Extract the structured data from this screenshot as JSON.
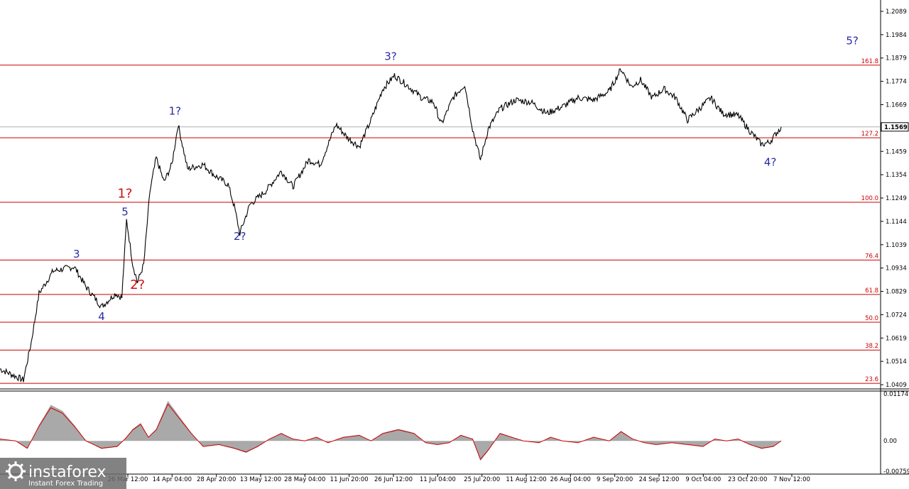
{
  "chart_data": [
    {
      "type": "line",
      "instrument_price_label": "1.1569",
      "y_ticks": [
        "1.2089",
        "1.1984",
        "1.1879",
        "1.1774",
        "1.1669",
        "1.1564",
        "1.1459",
        "1.1354",
        "1.1249",
        "1.1144",
        "1.1039",
        "1.0934",
        "1.0829",
        "1.0724",
        "1.0619",
        "1.0514",
        "1.0409"
      ],
      "ylim": [
        1.039,
        1.214
      ],
      "x_ticks": [
        "26 Mar 12:00",
        "14 Apr 04:00",
        "28 Apr 20:00",
        "13 May 12:00",
        "28 May 04:00",
        "11 Jun 20:00",
        "26 Jun 12:00",
        "11 Jul 04:00",
        "25 Jul 20:00",
        "11 Aug 12:00",
        "26 Aug 04:00",
        "9 Sep 20:00",
        "24 Sep 12:00",
        "9 Oct 04:00",
        "23 Oct 20:00",
        "7 Nov 12:00"
      ],
      "fib_levels": [
        {
          "label": "161.8",
          "value": 1.1847
        },
        {
          "label": "127.2",
          "value": 1.152
        },
        {
          "label": "100.0",
          "value": 1.123
        },
        {
          "label": "76.4",
          "value": 1.097
        },
        {
          "label": "61.8",
          "value": 1.0815
        },
        {
          "label": "50.0",
          "value": 1.069
        },
        {
          "label": "38.2",
          "value": 1.0565
        },
        {
          "label": "23.6",
          "value": 1.0415
        }
      ],
      "current_price": 1.1569,
      "wave_labels": [
        {
          "text": "3",
          "color": "blue",
          "t": 0.098,
          "y": 1.098
        },
        {
          "text": "4",
          "color": "blue",
          "t": 0.13,
          "y": 1.07
        },
        {
          "text": "5",
          "color": "blue",
          "t": 0.16,
          "y": 1.117
        },
        {
          "text": "1?",
          "color": "red",
          "t": 0.16,
          "y": 1.125
        },
        {
          "text": "2?",
          "color": "red",
          "t": 0.176,
          "y": 1.084
        },
        {
          "text": "1?",
          "color": "blue",
          "t": 0.224,
          "y": 1.1625
        },
        {
          "text": "2?",
          "color": "blue",
          "t": 0.307,
          "y": 1.106
        },
        {
          "text": "3?",
          "color": "blue",
          "t": 0.5,
          "y": 1.187
        },
        {
          "text": "4?",
          "color": "blue",
          "t": 0.986,
          "y": 1.1395
        },
        {
          "text": "5?",
          "color": "blue",
          "t": 1.091,
          "y": 1.194
        }
      ],
      "price_points": [
        [
          0.0,
          1.048
        ],
        [
          0.03,
          1.043
        ],
        [
          0.04,
          1.06
        ],
        [
          0.05,
          1.082
        ],
        [
          0.068,
          1.092
        ],
        [
          0.095,
          1.094
        ],
        [
          0.11,
          1.085
        ],
        [
          0.13,
          1.076
        ],
        [
          0.148,
          1.082
        ],
        [
          0.156,
          1.08
        ],
        [
          0.162,
          1.115
        ],
        [
          0.17,
          1.095
        ],
        [
          0.176,
          1.087
        ],
        [
          0.184,
          1.095
        ],
        [
          0.192,
          1.128
        ],
        [
          0.2,
          1.143
        ],
        [
          0.21,
          1.132
        ],
        [
          0.22,
          1.14
        ],
        [
          0.228,
          1.158
        ],
        [
          0.24,
          1.138
        ],
        [
          0.26,
          1.14
        ],
        [
          0.275,
          1.135
        ],
        [
          0.292,
          1.131
        ],
        [
          0.3,
          1.121
        ],
        [
          0.307,
          1.109
        ],
        [
          0.32,
          1.122
        ],
        [
          0.34,
          1.128
        ],
        [
          0.36,
          1.137
        ],
        [
          0.375,
          1.13
        ],
        [
          0.395,
          1.142
        ],
        [
          0.41,
          1.14
        ],
        [
          0.43,
          1.158
        ],
        [
          0.445,
          1.152
        ],
        [
          0.46,
          1.148
        ],
        [
          0.475,
          1.16
        ],
        [
          0.49,
          1.174
        ],
        [
          0.505,
          1.18
        ],
        [
          0.52,
          1.176
        ],
        [
          0.54,
          1.17
        ],
        [
          0.555,
          1.168
        ],
        [
          0.565,
          1.158
        ],
        [
          0.58,
          1.17
        ],
        [
          0.595,
          1.176
        ],
        [
          0.605,
          1.156
        ],
        [
          0.615,
          1.142
        ],
        [
          0.625,
          1.156
        ],
        [
          0.64,
          1.165
        ],
        [
          0.66,
          1.169
        ],
        [
          0.68,
          1.168
        ],
        [
          0.7,
          1.163
        ],
        [
          0.72,
          1.166
        ],
        [
          0.74,
          1.17
        ],
        [
          0.76,
          1.169
        ],
        [
          0.78,
          1.173
        ],
        [
          0.795,
          1.183
        ],
        [
          0.808,
          1.175
        ],
        [
          0.82,
          1.178
        ],
        [
          0.835,
          1.17
        ],
        [
          0.85,
          1.174
        ],
        [
          0.865,
          1.17
        ],
        [
          0.88,
          1.16
        ],
        [
          0.895,
          1.165
        ],
        [
          0.91,
          1.17
        ],
        [
          0.925,
          1.163
        ],
        [
          0.945,
          1.162
        ],
        [
          0.96,
          1.155
        ],
        [
          0.975,
          1.149
        ],
        [
          0.985,
          1.15
        ],
        [
          1.0,
          1.1569
        ]
      ]
    },
    {
      "type": "area",
      "indicator": "oscillator",
      "y_ticks": [
        "0.01174",
        "0.00",
        "-0.00759"
      ],
      "ylim": [
        -0.00759,
        0.01174
      ],
      "points": [
        [
          0.0,
          0.0005
        ],
        [
          0.02,
          0.0
        ],
        [
          0.035,
          -0.002
        ],
        [
          0.05,
          0.004
        ],
        [
          0.065,
          0.009
        ],
        [
          0.08,
          0.0075
        ],
        [
          0.095,
          0.004
        ],
        [
          0.11,
          0.0
        ],
        [
          0.13,
          -0.002
        ],
        [
          0.15,
          -0.0015
        ],
        [
          0.16,
          0.0005
        ],
        [
          0.17,
          0.003
        ],
        [
          0.18,
          0.0045
        ],
        [
          0.19,
          0.001
        ],
        [
          0.2,
          0.003
        ],
        [
          0.215,
          0.01
        ],
        [
          0.23,
          0.006
        ],
        [
          0.245,
          0.002
        ],
        [
          0.26,
          -0.0015
        ],
        [
          0.28,
          -0.001
        ],
        [
          0.3,
          -0.002
        ],
        [
          0.315,
          -0.003
        ],
        [
          0.33,
          -0.0015
        ],
        [
          0.345,
          0.0005
        ],
        [
          0.36,
          0.002
        ],
        [
          0.375,
          0.0005
        ],
        [
          0.39,
          0.0
        ],
        [
          0.405,
          0.001
        ],
        [
          0.42,
          -0.0005
        ],
        [
          0.44,
          0.001
        ],
        [
          0.46,
          0.0015
        ],
        [
          0.475,
          0.0
        ],
        [
          0.49,
          0.002
        ],
        [
          0.51,
          0.003
        ],
        [
          0.53,
          0.002
        ],
        [
          0.545,
          -0.0005
        ],
        [
          0.56,
          -0.001
        ],
        [
          0.575,
          -0.0005
        ],
        [
          0.59,
          0.0015
        ],
        [
          0.605,
          0.0005
        ],
        [
          0.615,
          -0.005
        ],
        [
          0.625,
          -0.0025
        ],
        [
          0.64,
          0.002
        ],
        [
          0.655,
          0.001
        ],
        [
          0.67,
          0.0
        ],
        [
          0.69,
          -0.0005
        ],
        [
          0.705,
          0.001
        ],
        [
          0.72,
          0.0
        ],
        [
          0.74,
          -0.0005
        ],
        [
          0.76,
          0.001
        ],
        [
          0.78,
          0.0
        ],
        [
          0.795,
          0.0025
        ],
        [
          0.81,
          0.0005
        ],
        [
          0.825,
          -0.0005
        ],
        [
          0.84,
          -0.001
        ],
        [
          0.86,
          -0.0005
        ],
        [
          0.88,
          -0.001
        ],
        [
          0.9,
          -0.0015
        ],
        [
          0.915,
          0.0005
        ],
        [
          0.93,
          0.0
        ],
        [
          0.945,
          0.0005
        ],
        [
          0.96,
          -0.001
        ],
        [
          0.975,
          -0.002
        ],
        [
          0.99,
          -0.0015
        ],
        [
          1.0,
          0.0
        ]
      ]
    }
  ],
  "chart_area": {
    "background": "#ffffff",
    "price_line_color": "#000000",
    "fib_line_color": "#cc0000",
    "current_price_line_color": "#b0b0b0",
    "oscillator_fill_color": "#a9a9a9",
    "oscillator_signal_color": "#cc0000",
    "label_colors": {
      "blue": "#2a2aa8",
      "red": "#cc1111"
    }
  },
  "logo": {
    "brand": "instaforex",
    "tagline": "Instant Forex Trading",
    "icon": "gear-icon"
  }
}
